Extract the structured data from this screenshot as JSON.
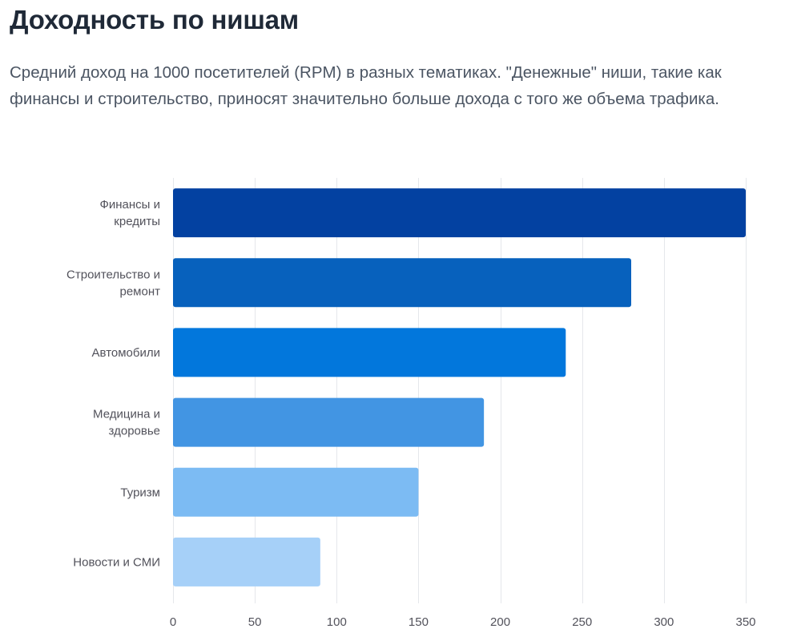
{
  "page": {
    "title": "Доходность по нишам",
    "description": "Средний доход на 1000 посетителей (RPM) в разных тематиках. \"Денежные\" ниши, такие как финансы и строительство, приносят значительно больше дохода с того же объема трафика."
  },
  "chart_data": {
    "type": "bar",
    "orientation": "horizontal",
    "title": "",
    "xlabel": "",
    "ylabel": "",
    "categories": [
      [
        "Финансы и",
        "кредиты"
      ],
      [
        "Строительство и",
        "ремонт"
      ],
      [
        "Автомобили"
      ],
      [
        "Медицина и",
        "здоровье"
      ],
      [
        "Туризм"
      ],
      [
        "Новости и СМИ"
      ]
    ],
    "values": [
      350,
      280,
      240,
      190,
      150,
      90
    ],
    "colors": [
      "#0341a1",
      "#0761bd",
      "#0277dc",
      "#4295e3",
      "#7cbbf3",
      "#a6d0f8"
    ],
    "xlim": [
      0,
      350
    ],
    "xticks": [
      0,
      50,
      100,
      150,
      200,
      250,
      300,
      350
    ],
    "grid": true,
    "legend": "none"
  }
}
